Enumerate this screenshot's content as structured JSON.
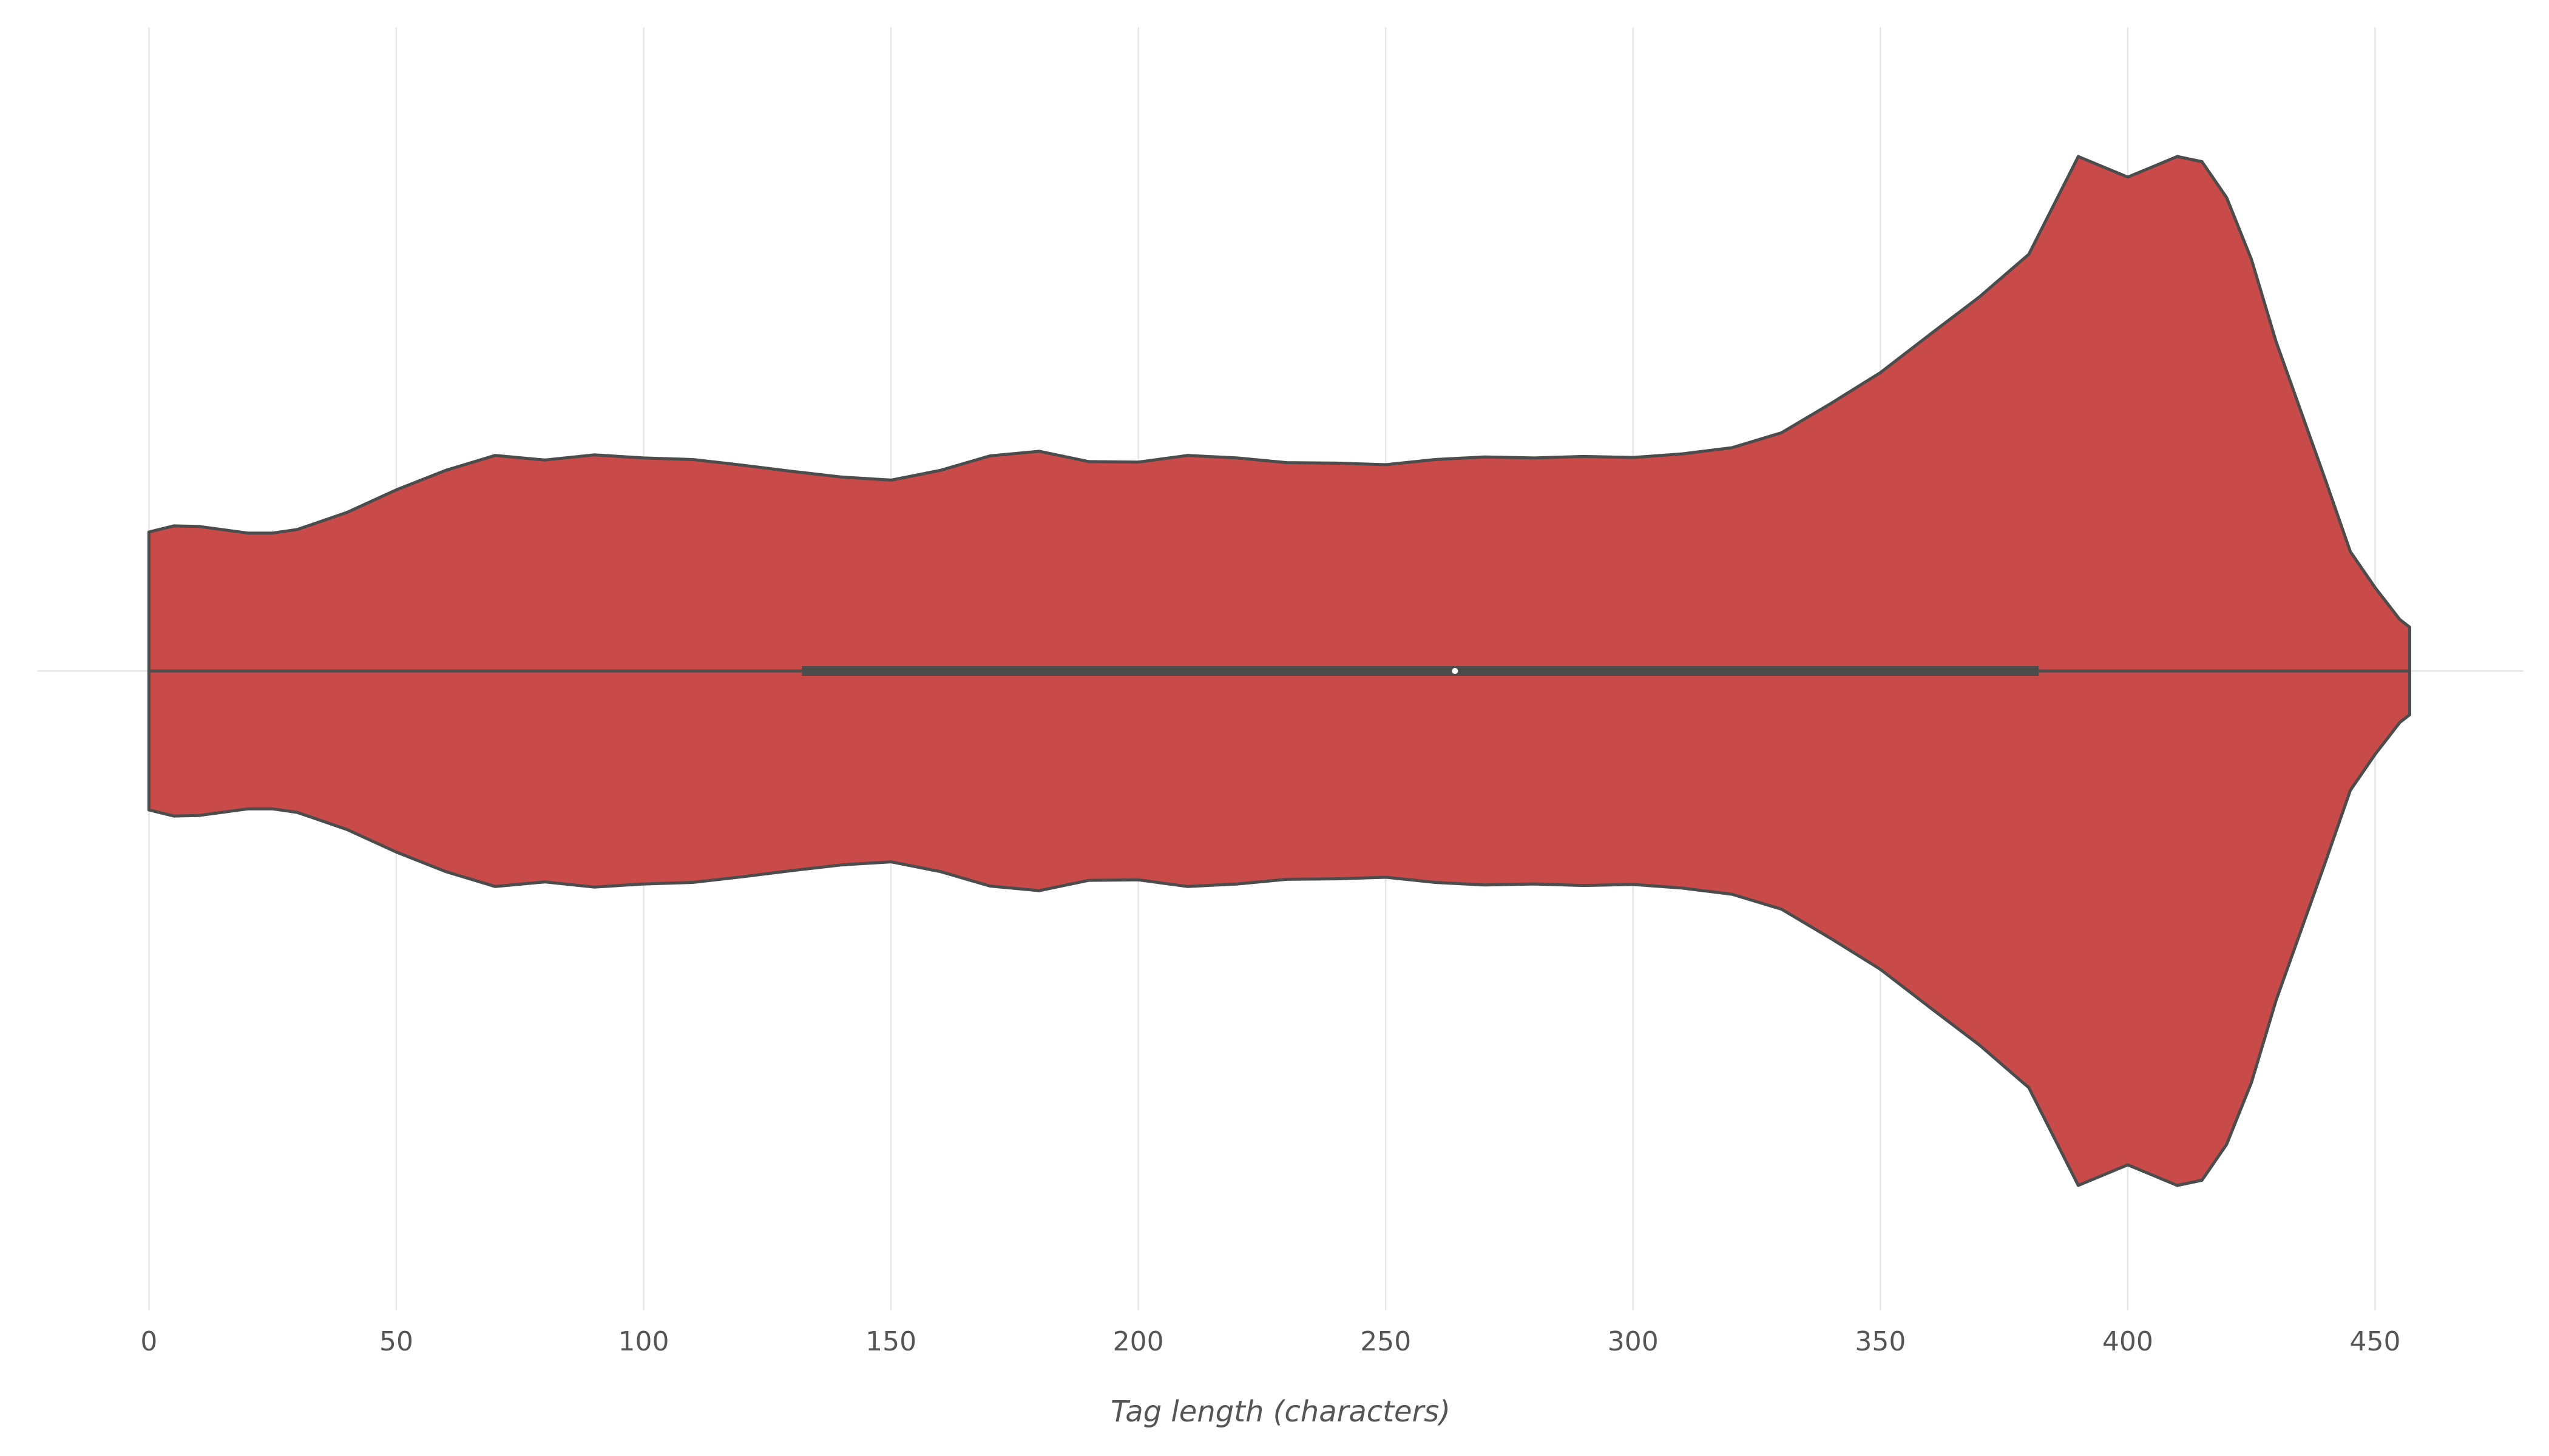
{
  "chart_data": {
    "type": "violin",
    "orientation": "horizontal",
    "xlabel": "Tag length (characters)",
    "ylabel": "",
    "xlim": [
      -22.5,
      480
    ],
    "x_ticks": [
      0,
      50,
      100,
      150,
      200,
      250,
      300,
      350,
      400,
      450
    ],
    "x_tick_labels": [
      "0",
      "50",
      "100",
      "150",
      "200",
      "250",
      "300",
      "350",
      "400",
      "450"
    ],
    "grid": "vertical",
    "colors": {
      "fill": "#c84b4a",
      "outline": "#4c4c4c",
      "grid": "#e6e6e6",
      "text": "#555555",
      "median": "#ffffff"
    },
    "violin": {
      "min": 0,
      "max": 457,
      "q1": 132,
      "median": 264,
      "q3": 382,
      "density": {
        "x": [
          0,
          5,
          10,
          20,
          25,
          30,
          40,
          50,
          60,
          70,
          80,
          90,
          100,
          110,
          120,
          130,
          140,
          150,
          160,
          170,
          180,
          190,
          200,
          210,
          220,
          230,
          240,
          250,
          260,
          270,
          280,
          290,
          300,
          310,
          320,
          330,
          340,
          350,
          360,
          370,
          380,
          390,
          400,
          405,
          410,
          415,
          420,
          425,
          430,
          440,
          445,
          450,
          455,
          457
        ],
        "y": [
          0.27,
          0.282,
          0.281,
          0.268,
          0.268,
          0.275,
          0.308,
          0.352,
          0.39,
          0.419,
          0.41,
          0.42,
          0.414,
          0.411,
          0.4,
          0.388,
          0.377,
          0.371,
          0.39,
          0.418,
          0.427,
          0.407,
          0.406,
          0.419,
          0.414,
          0.405,
          0.404,
          0.401,
          0.411,
          0.416,
          0.414,
          0.417,
          0.415,
          0.422,
          0.434,
          0.463,
          0.52,
          0.58,
          0.654,
          0.727,
          0.81,
          1.0,
          0.96,
          0.98,
          1.0,
          0.99,
          0.92,
          0.8,
          0.64,
          0.37,
          0.232,
          0.162,
          0.1,
          0.085
        ]
      }
    }
  }
}
